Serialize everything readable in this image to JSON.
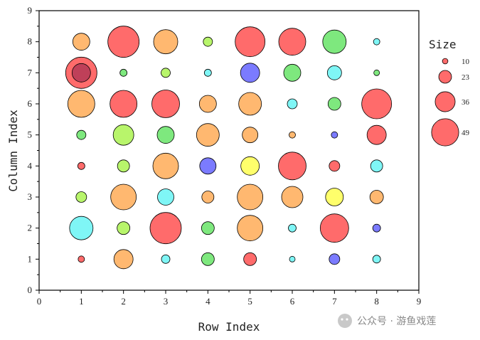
{
  "chart_data": {
    "type": "scatter",
    "subtype": "bubble",
    "xlabel": "Row Index",
    "ylabel": "Column Index",
    "xlim": [
      0,
      9
    ],
    "ylim": [
      0,
      9
    ],
    "xticks": [
      "0",
      "1",
      "2",
      "3",
      "4",
      "5",
      "6",
      "7",
      "8",
      "9"
    ],
    "yticks": [
      "0",
      "1",
      "2",
      "3",
      "4",
      "5",
      "6",
      "7",
      "8",
      "9"
    ],
    "grid": false,
    "colors": {
      "red": "#ff6b6b",
      "orange": "#ffb870",
      "green": "#7ee87e",
      "cyan": "#7ff6f6",
      "blue": "#7b7bff",
      "yellow": "#ffff6b",
      "lime": "#b8f56b"
    },
    "points": [
      {
        "x": 1,
        "y": 8,
        "size": 24,
        "color": "orange"
      },
      {
        "x": 2,
        "y": 8,
        "size": 44,
        "color": "red"
      },
      {
        "x": 3,
        "y": 8,
        "size": 34,
        "color": "orange"
      },
      {
        "x": 4,
        "y": 8,
        "size": 13,
        "color": "lime"
      },
      {
        "x": 5,
        "y": 8,
        "size": 42,
        "color": "red"
      },
      {
        "x": 6,
        "y": 8,
        "size": 38,
        "color": "red"
      },
      {
        "x": 7,
        "y": 8,
        "size": 33,
        "color": "green"
      },
      {
        "x": 8,
        "y": 8,
        "size": 9,
        "color": "cyan"
      },
      {
        "x": 1,
        "y": 7,
        "size": 44,
        "color": "red"
      },
      {
        "x": 1,
        "y": 7,
        "size": 26,
        "color": "purple-overlay"
      },
      {
        "x": 2,
        "y": 7,
        "size": 10,
        "color": "green"
      },
      {
        "x": 3,
        "y": 7,
        "size": 13,
        "color": "lime"
      },
      {
        "x": 4,
        "y": 7,
        "size": 10,
        "color": "cyan"
      },
      {
        "x": 5,
        "y": 7,
        "size": 27,
        "color": "blue"
      },
      {
        "x": 6,
        "y": 7,
        "size": 24,
        "color": "green"
      },
      {
        "x": 7,
        "y": 7,
        "size": 20,
        "color": "cyan"
      },
      {
        "x": 8,
        "y": 7,
        "size": 8,
        "color": "green"
      },
      {
        "x": 1,
        "y": 6,
        "size": 38,
        "color": "orange"
      },
      {
        "x": 2,
        "y": 6,
        "size": 38,
        "color": "red"
      },
      {
        "x": 3,
        "y": 6,
        "size": 39,
        "color": "red"
      },
      {
        "x": 4,
        "y": 6,
        "size": 24,
        "color": "orange"
      },
      {
        "x": 5,
        "y": 6,
        "size": 32,
        "color": "orange"
      },
      {
        "x": 6,
        "y": 6,
        "size": 14,
        "color": "cyan"
      },
      {
        "x": 7,
        "y": 6,
        "size": 18,
        "color": "green"
      },
      {
        "x": 8,
        "y": 6,
        "size": 42,
        "color": "red"
      },
      {
        "x": 1,
        "y": 5,
        "size": 13,
        "color": "green"
      },
      {
        "x": 2,
        "y": 5,
        "size": 29,
        "color": "lime"
      },
      {
        "x": 3,
        "y": 5,
        "size": 24,
        "color": "green"
      },
      {
        "x": 4,
        "y": 5,
        "size": 32,
        "color": "orange"
      },
      {
        "x": 5,
        "y": 5,
        "size": 22,
        "color": "orange"
      },
      {
        "x": 6,
        "y": 5,
        "size": 9,
        "color": "orange"
      },
      {
        "x": 7,
        "y": 5,
        "size": 9,
        "color": "blue"
      },
      {
        "x": 8,
        "y": 5,
        "size": 27,
        "color": "red"
      },
      {
        "x": 1,
        "y": 4,
        "size": 10,
        "color": "red"
      },
      {
        "x": 2,
        "y": 4,
        "size": 17,
        "color": "lime"
      },
      {
        "x": 3,
        "y": 4,
        "size": 36,
        "color": "orange"
      },
      {
        "x": 4,
        "y": 4,
        "size": 23,
        "color": "blue"
      },
      {
        "x": 5,
        "y": 4,
        "size": 26,
        "color": "yellow"
      },
      {
        "x": 6,
        "y": 4,
        "size": 39,
        "color": "red"
      },
      {
        "x": 7,
        "y": 4,
        "size": 15,
        "color": "red"
      },
      {
        "x": 8,
        "y": 4,
        "size": 17,
        "color": "cyan"
      },
      {
        "x": 1,
        "y": 3,
        "size": 15,
        "color": "lime"
      },
      {
        "x": 2,
        "y": 3,
        "size": 36,
        "color": "orange"
      },
      {
        "x": 3,
        "y": 3,
        "size": 23,
        "color": "cyan"
      },
      {
        "x": 4,
        "y": 3,
        "size": 17,
        "color": "orange"
      },
      {
        "x": 5,
        "y": 3,
        "size": 36,
        "color": "orange"
      },
      {
        "x": 6,
        "y": 3,
        "size": 30,
        "color": "orange"
      },
      {
        "x": 7,
        "y": 3,
        "size": 25,
        "color": "yellow"
      },
      {
        "x": 8,
        "y": 3,
        "size": 19,
        "color": "orange"
      },
      {
        "x": 1,
        "y": 2,
        "size": 33,
        "color": "cyan"
      },
      {
        "x": 2,
        "y": 2,
        "size": 18,
        "color": "lime"
      },
      {
        "x": 3,
        "y": 2,
        "size": 44,
        "color": "red"
      },
      {
        "x": 4,
        "y": 2,
        "size": 18,
        "color": "green"
      },
      {
        "x": 5,
        "y": 2,
        "size": 36,
        "color": "orange"
      },
      {
        "x": 6,
        "y": 2,
        "size": 11,
        "color": "cyan"
      },
      {
        "x": 7,
        "y": 2,
        "size": 40,
        "color": "red"
      },
      {
        "x": 8,
        "y": 2,
        "size": 11,
        "color": "blue"
      },
      {
        "x": 1,
        "y": 1,
        "size": 9,
        "color": "red"
      },
      {
        "x": 2,
        "y": 1,
        "size": 27,
        "color": "orange"
      },
      {
        "x": 3,
        "y": 1,
        "size": 12,
        "color": "cyan"
      },
      {
        "x": 4,
        "y": 1,
        "size": 18,
        "color": "green"
      },
      {
        "x": 5,
        "y": 1,
        "size": 18,
        "color": "red"
      },
      {
        "x": 6,
        "y": 1,
        "size": 8,
        "color": "cyan"
      },
      {
        "x": 7,
        "y": 1,
        "size": 15,
        "color": "blue"
      },
      {
        "x": 8,
        "y": 1,
        "size": 11,
        "color": "cyan"
      }
    ],
    "legend": {
      "title": "Size",
      "placement": "right",
      "color": "red",
      "entries": [
        {
          "label": "10",
          "size": 10
        },
        {
          "label": "23",
          "size": 23
        },
        {
          "label": "36",
          "size": 36
        },
        {
          "label": "49",
          "size": 49
        }
      ]
    }
  },
  "watermark": {
    "text": "公众号 · 游鱼戏莲"
  }
}
